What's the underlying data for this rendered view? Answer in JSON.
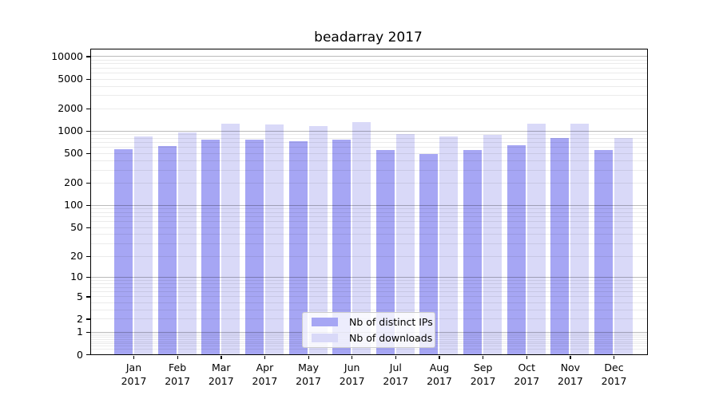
{
  "title": "beadarray 2017",
  "legend": {
    "items": [
      {
        "label": "Nb of distinct IPs",
        "color": "#a6a6f4"
      },
      {
        "label": "Nb of downloads",
        "color": "#d9d9f8"
      }
    ]
  },
  "chart_data": {
    "type": "bar",
    "title": "beadarray 2017",
    "scale": "log1p",
    "categories": [
      "Jan 2017",
      "Feb 2017",
      "Mar 2017",
      "Apr 2017",
      "May 2017",
      "Jun 2017",
      "Jul 2017",
      "Aug 2017",
      "Sep 2017",
      "Oct 2017",
      "Nov 2017",
      "Dec 2017"
    ],
    "series": [
      {
        "name": "Nb of distinct IPs",
        "color": "#a6a6f4",
        "values": [
          570,
          615,
          765,
          750,
          730,
          765,
          555,
          490,
          555,
          645,
          800,
          555
        ]
      },
      {
        "name": "Nb of downloads",
        "color": "#d9d9f8",
        "values": [
          845,
          935,
          1255,
          1225,
          1140,
          1320,
          890,
          840,
          885,
          1250,
          1255,
          805
        ]
      }
    ],
    "y_ticks": [
      0,
      1,
      2,
      5,
      10,
      20,
      50,
      100,
      200,
      500,
      1000,
      2000,
      5000,
      10000
    ],
    "major_gridlines": [
      1,
      10,
      100,
      1000,
      10000
    ],
    "ylim": [
      0,
      12300
    ],
    "xlabel": "",
    "ylabel": "",
    "grid": true,
    "legend_position": "lower-center"
  }
}
